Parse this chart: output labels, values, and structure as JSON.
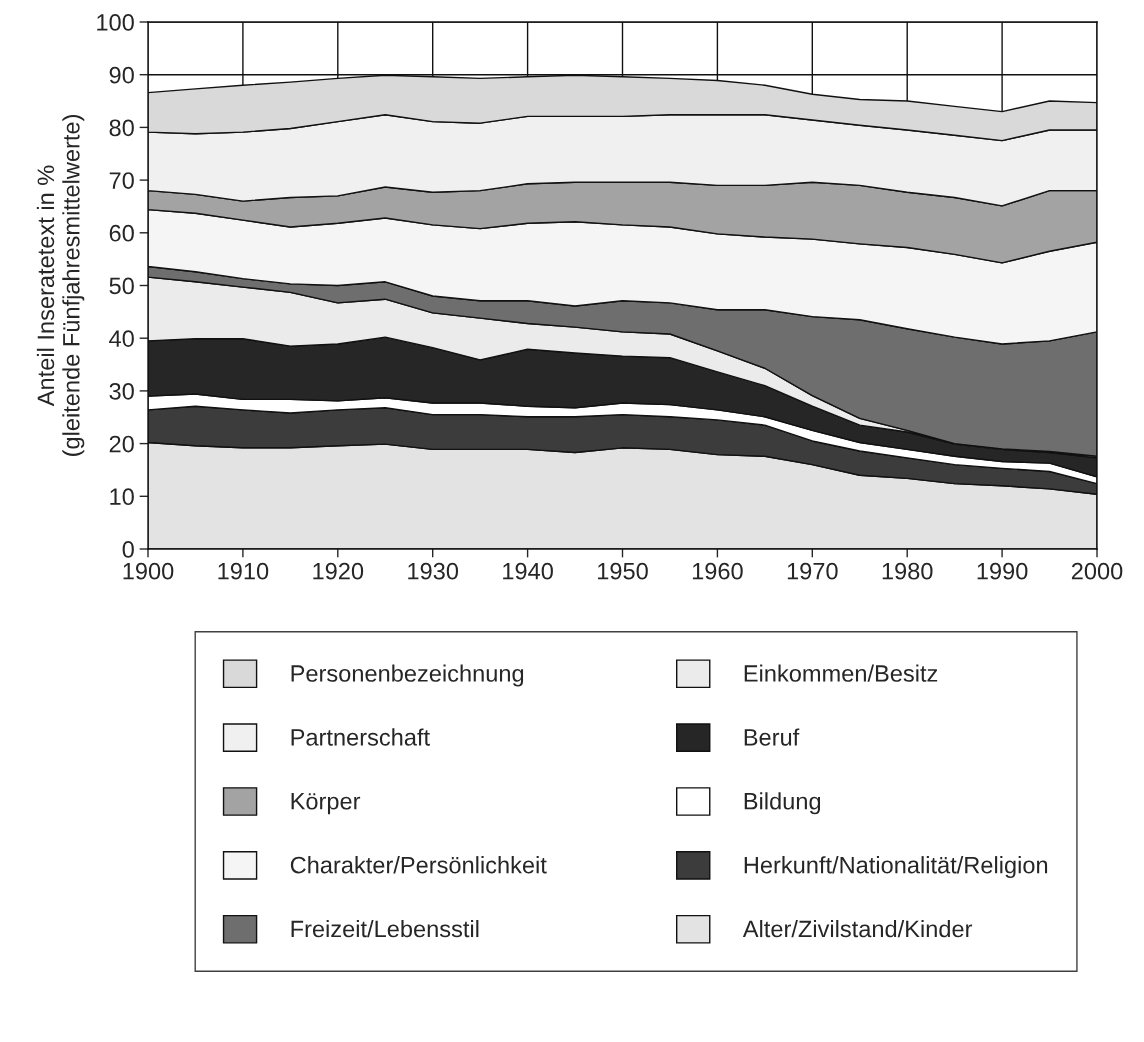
{
  "chart_data": {
    "type": "area",
    "stacked": true,
    "ylabel": "Anteil Inseratetext in %\n(gleitende Fünfjahresmittelwerte)",
    "x": [
      1900,
      1905,
      1910,
      1915,
      1920,
      1925,
      1930,
      1935,
      1940,
      1945,
      1950,
      1955,
      1960,
      1965,
      1970,
      1975,
      1980,
      1985,
      1990,
      1995,
      2000
    ],
    "xlim": [
      1900,
      2000
    ],
    "xticks": [
      1900,
      1910,
      1920,
      1930,
      1940,
      1950,
      1960,
      1970,
      1980,
      1990,
      2000
    ],
    "ylim": [
      0,
      100
    ],
    "yticks": [
      0,
      10,
      20,
      30,
      40,
      50,
      60,
      70,
      80,
      90,
      100
    ],
    "grid": true,
    "legend": "bottom",
    "series": [
      {
        "name": "Alter/Zivilstand/Kinder",
        "color": "#e3e3e3",
        "values": [
          20.2,
          19.6,
          19.2,
          19.2,
          19.6,
          19.9,
          18.9,
          18.9,
          18.9,
          18.3,
          19.2,
          18.9,
          17.9,
          17.6,
          16.0,
          14.0,
          13.4,
          12.4,
          12.0,
          11.4,
          10.4
        ]
      },
      {
        "name": "Herkunft/Nationalität/Religion",
        "color": "#3c3c3c",
        "values": [
          6.2,
          7.5,
          7.2,
          6.6,
          6.8,
          6.9,
          6.6,
          6.6,
          6.2,
          6.8,
          6.3,
          6.2,
          6.6,
          5.9,
          4.5,
          4.6,
          3.9,
          3.6,
          3.3,
          3.3,
          2.0
        ]
      },
      {
        "name": "Bildung",
        "color": "#ffffff",
        "values": [
          2.6,
          2.3,
          2.0,
          2.6,
          1.7,
          1.9,
          2.2,
          2.2,
          2.0,
          1.7,
          2.2,
          2.3,
          1.9,
          1.6,
          2.0,
          1.6,
          1.6,
          1.6,
          1.3,
          1.6,
          1.3
        ]
      },
      {
        "name": "Beruf",
        "color": "#262626",
        "values": [
          10.5,
          10.5,
          11.5,
          10.1,
          10.8,
          11.5,
          10.5,
          8.2,
          10.8,
          10.4,
          8.9,
          8.9,
          7.2,
          5.9,
          4.6,
          3.3,
          3.3,
          2.3,
          2.3,
          2.0,
          3.6
        ]
      },
      {
        "name": "Einkommen/Besitz",
        "color": "#ebebeb",
        "values": [
          12.1,
          10.8,
          9.8,
          10.2,
          7.8,
          7.2,
          6.6,
          7.9,
          4.9,
          4.9,
          4.6,
          4.5,
          4.0,
          3.3,
          2.0,
          1.3,
          0.3,
          0.1,
          0.1,
          0.2,
          0.3
        ]
      },
      {
        "name": "Freizeit/Lebensstil",
        "color": "#6e6e6e",
        "values": [
          2.0,
          1.9,
          1.6,
          1.6,
          3.3,
          3.3,
          3.2,
          3.3,
          4.3,
          4.0,
          5.9,
          5.9,
          7.8,
          11.1,
          15.0,
          18.7,
          19.3,
          20.2,
          19.9,
          21.0,
          23.6
        ]
      },
      {
        "name": "Charakter/Persönlichkeit",
        "color": "#f5f5f5",
        "values": [
          10.8,
          11.1,
          11.1,
          10.8,
          11.8,
          12.1,
          13.5,
          13.7,
          14.7,
          16.0,
          14.4,
          14.4,
          14.4,
          13.8,
          14.7,
          14.4,
          15.4,
          15.7,
          15.4,
          17.0,
          17.0
        ]
      },
      {
        "name": "Körper",
        "color": "#a3a3a3",
        "values": [
          3.6,
          3.6,
          3.6,
          5.6,
          5.2,
          5.9,
          6.2,
          7.2,
          7.5,
          7.5,
          8.1,
          8.5,
          9.2,
          9.8,
          10.8,
          11.1,
          10.5,
          10.8,
          10.8,
          11.5,
          9.8
        ]
      },
      {
        "name": "Partnerschaft",
        "color": "#f0f0f0",
        "values": [
          11.1,
          11.5,
          13.1,
          13.1,
          14.1,
          13.7,
          13.4,
          12.8,
          12.8,
          12.5,
          12.5,
          12.8,
          13.4,
          13.4,
          11.8,
          11.4,
          11.8,
          11.8,
          12.4,
          11.5,
          11.5
        ]
      },
      {
        "name": "Personenbezeichnung",
        "color": "#d9d9d9",
        "values": [
          7.5,
          8.5,
          8.9,
          8.8,
          8.2,
          7.5,
          8.5,
          8.5,
          7.5,
          7.8,
          7.5,
          6.9,
          6.5,
          5.6,
          4.9,
          4.9,
          5.5,
          5.5,
          5.5,
          5.5,
          5.2
        ]
      }
    ]
  }
}
